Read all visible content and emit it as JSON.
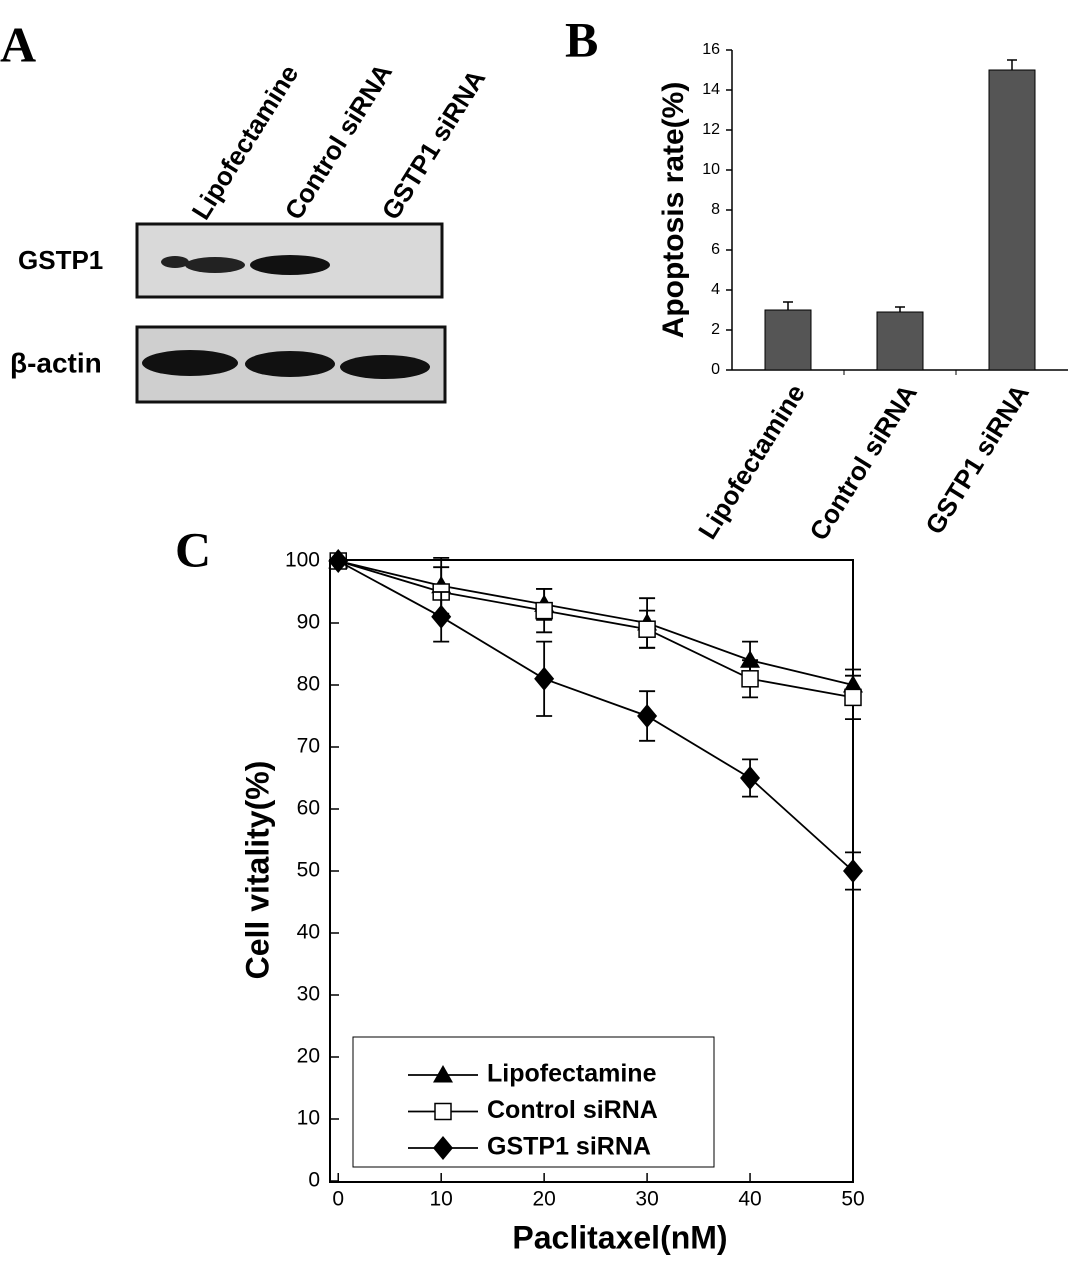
{
  "blot": {
    "panel_label": "A",
    "lanes": [
      "Lipofectamine",
      "Control siRNA",
      "GSTP1 siRNA"
    ],
    "rows": [
      "GSTP1",
      "β-actin"
    ]
  },
  "chart_data": [
    {
      "type": "bar",
      "panel_label": "B",
      "ylabel": "Apoptosis rate(%)",
      "categories": [
        "Lipofectamine",
        "Control siRNA",
        "GSTP1 siRNA"
      ],
      "values": [
        3,
        2.9,
        15
      ],
      "errors": [
        0.4,
        0.25,
        0.5
      ],
      "color": "#555555",
      "ylim": [
        0,
        16
      ],
      "yticks": [
        0,
        2,
        4,
        6,
        8,
        10,
        12,
        14,
        16
      ]
    },
    {
      "type": "line",
      "panel_label": "C",
      "xlabel": "Paclitaxel(nM)",
      "ylabel": "Cell vitality(%)",
      "x": [
        0,
        10,
        20,
        30,
        40,
        50
      ],
      "series": [
        {
          "name": "Lipofectamine",
          "color": "#000000",
          "marker": "triangle",
          "values": [
            100,
            96,
            93,
            90,
            84,
            80
          ],
          "errors": [
            0,
            4.5,
            2.5,
            4,
            3,
            2.5
          ]
        },
        {
          "name": "Control siRNA",
          "color": "#000000",
          "marker": "open-square",
          "values": [
            100,
            95,
            92,
            89,
            81,
            78
          ],
          "errors": [
            0,
            4,
            3.5,
            3,
            3,
            3.5
          ]
        },
        {
          "name": "GSTP1 siRNA",
          "color": "#000000",
          "marker": "diamond",
          "values": [
            100,
            91,
            81,
            75,
            65,
            50
          ],
          "errors": [
            0,
            4,
            6,
            4,
            3,
            3
          ]
        }
      ],
      "xlim": [
        -0.8,
        50
      ],
      "xticks": [
        0,
        10,
        20,
        30,
        40,
        50
      ],
      "ylim": [
        0,
        100
      ],
      "yticks": [
        0,
        10,
        20,
        30,
        40,
        50,
        60,
        70,
        80,
        90,
        100
      ],
      "legend": "lower-left"
    }
  ]
}
